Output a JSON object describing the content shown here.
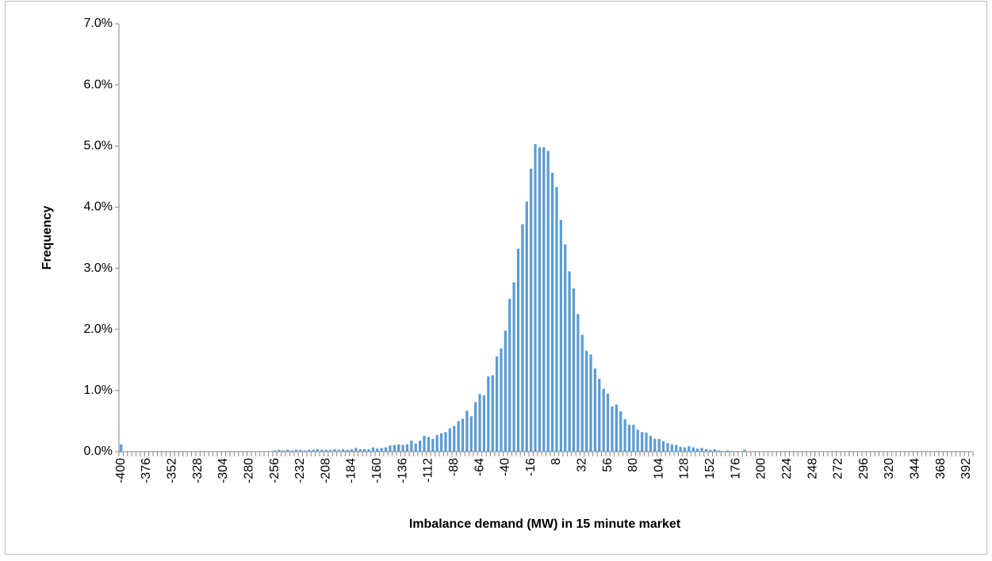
{
  "chart_data": {
    "type": "bar",
    "ylabel": "Frequency",
    "xlabel": "Imbalance demand (MW) in 15 minute market",
    "color": "#5b9bd5",
    "ylim": [
      0,
      7
    ],
    "yticks": [
      {
        "value": 0,
        "label": "0.0%"
      },
      {
        "value": 1,
        "label": "1.0%"
      },
      {
        "value": 2,
        "label": "2.0%"
      },
      {
        "value": 3,
        "label": "3.0%"
      },
      {
        "value": 4,
        "label": "4.0%"
      },
      {
        "value": 5,
        "label": "5.0%"
      },
      {
        "value": 6,
        "label": "6.0%"
      },
      {
        "value": 7,
        "label": "7.0%"
      }
    ],
    "grid": false,
    "categories": [
      "-400",
      null,
      null,
      null,
      null,
      null,
      "-376",
      null,
      null,
      null,
      null,
      null,
      "-352",
      null,
      null,
      null,
      null,
      null,
      "-328",
      null,
      null,
      null,
      null,
      null,
      "-304",
      null,
      null,
      null,
      null,
      null,
      "-280",
      null,
      null,
      null,
      null,
      null,
      "-256",
      null,
      null,
      null,
      null,
      null,
      "-232",
      null,
      null,
      null,
      null,
      null,
      "-208",
      null,
      null,
      null,
      null,
      null,
      "-184",
      null,
      null,
      null,
      null,
      null,
      "-160",
      null,
      null,
      null,
      null,
      null,
      "-136",
      null,
      null,
      null,
      null,
      null,
      "-112",
      null,
      null,
      null,
      null,
      null,
      "-88",
      null,
      null,
      null,
      null,
      null,
      "-64",
      null,
      null,
      null,
      null,
      null,
      "-40",
      null,
      null,
      null,
      null,
      null,
      "-16",
      null,
      null,
      null,
      null,
      null,
      "8",
      null,
      null,
      null,
      null,
      null,
      "32",
      null,
      null,
      null,
      null,
      null,
      "56",
      null,
      null,
      null,
      null,
      null,
      "80",
      null,
      null,
      null,
      null,
      null,
      "104",
      null,
      null,
      null,
      null,
      null,
      "128",
      null,
      null,
      null,
      null,
      null,
      "152",
      null,
      null,
      null,
      null,
      null,
      "176",
      null,
      null,
      null,
      null,
      null,
      "200",
      null,
      null,
      null,
      null,
      null,
      "224",
      null,
      null,
      null,
      null,
      null,
      "248",
      null,
      null,
      null,
      null,
      null,
      "272",
      null,
      null,
      null,
      null,
      null,
      "296",
      null,
      null,
      null,
      null,
      null,
      "320",
      null,
      null,
      null,
      null,
      null,
      "344",
      null,
      null,
      null,
      null,
      null,
      "368",
      null,
      null,
      null,
      null,
      null,
      "392",
      null
    ],
    "values": [
      0.12,
      0,
      0,
      0,
      0,
      0,
      0,
      0,
      0,
      0,
      0,
      0,
      0,
      0,
      0,
      0,
      0,
      0,
      0,
      0,
      0,
      0,
      0,
      0,
      0,
      0,
      0,
      0,
      0,
      0,
      0,
      0,
      0,
      0,
      0,
      0,
      0.02,
      0.03,
      0.02,
      0.03,
      0.02,
      0.03,
      0.03,
      0.02,
      0.03,
      0.03,
      0.04,
      0.03,
      0.03,
      0.03,
      0.04,
      0.03,
      0.04,
      0.03,
      0.04,
      0.06,
      0.04,
      0.04,
      0.04,
      0.07,
      0.05,
      0.06,
      0.07,
      0.1,
      0.11,
      0.12,
      0.11,
      0.12,
      0.18,
      0.13,
      0.18,
      0.26,
      0.24,
      0.21,
      0.27,
      0.3,
      0.32,
      0.38,
      0.42,
      0.5,
      0.54,
      0.67,
      0.58,
      0.81,
      0.94,
      0.92,
      1.23,
      1.25,
      1.56,
      1.69,
      1.98,
      2.5,
      2.77,
      3.32,
      3.72,
      4.09,
      4.63,
      5.03,
      4.98,
      4.98,
      4.92,
      4.56,
      4.33,
      3.79,
      3.39,
      2.95,
      2.67,
      2.25,
      1.91,
      1.65,
      1.59,
      1.36,
      1.19,
      1.03,
      0.95,
      0.74,
      0.77,
      0.66,
      0.53,
      0.44,
      0.44,
      0.36,
      0.32,
      0.31,
      0.26,
      0.21,
      0.21,
      0.17,
      0.14,
      0.12,
      0.11,
      0.08,
      0.07,
      0.09,
      0.07,
      0.05,
      0.06,
      0.04,
      0.03,
      0.04,
      0.02,
      0.01,
      0.02,
      0.01,
      0,
      0,
      0.03,
      0,
      0,
      0,
      0,
      0,
      0,
      0,
      0,
      0,
      0,
      0,
      0,
      0,
      0,
      0,
      0,
      0,
      0,
      0,
      0,
      0,
      0,
      0,
      0,
      0,
      0,
      0,
      0,
      0,
      0,
      0,
      0,
      0,
      0,
      0,
      0,
      0,
      0,
      0,
      0,
      0,
      0,
      0,
      0,
      0,
      0,
      0,
      0,
      0,
      0,
      0,
      0,
      0
    ]
  }
}
